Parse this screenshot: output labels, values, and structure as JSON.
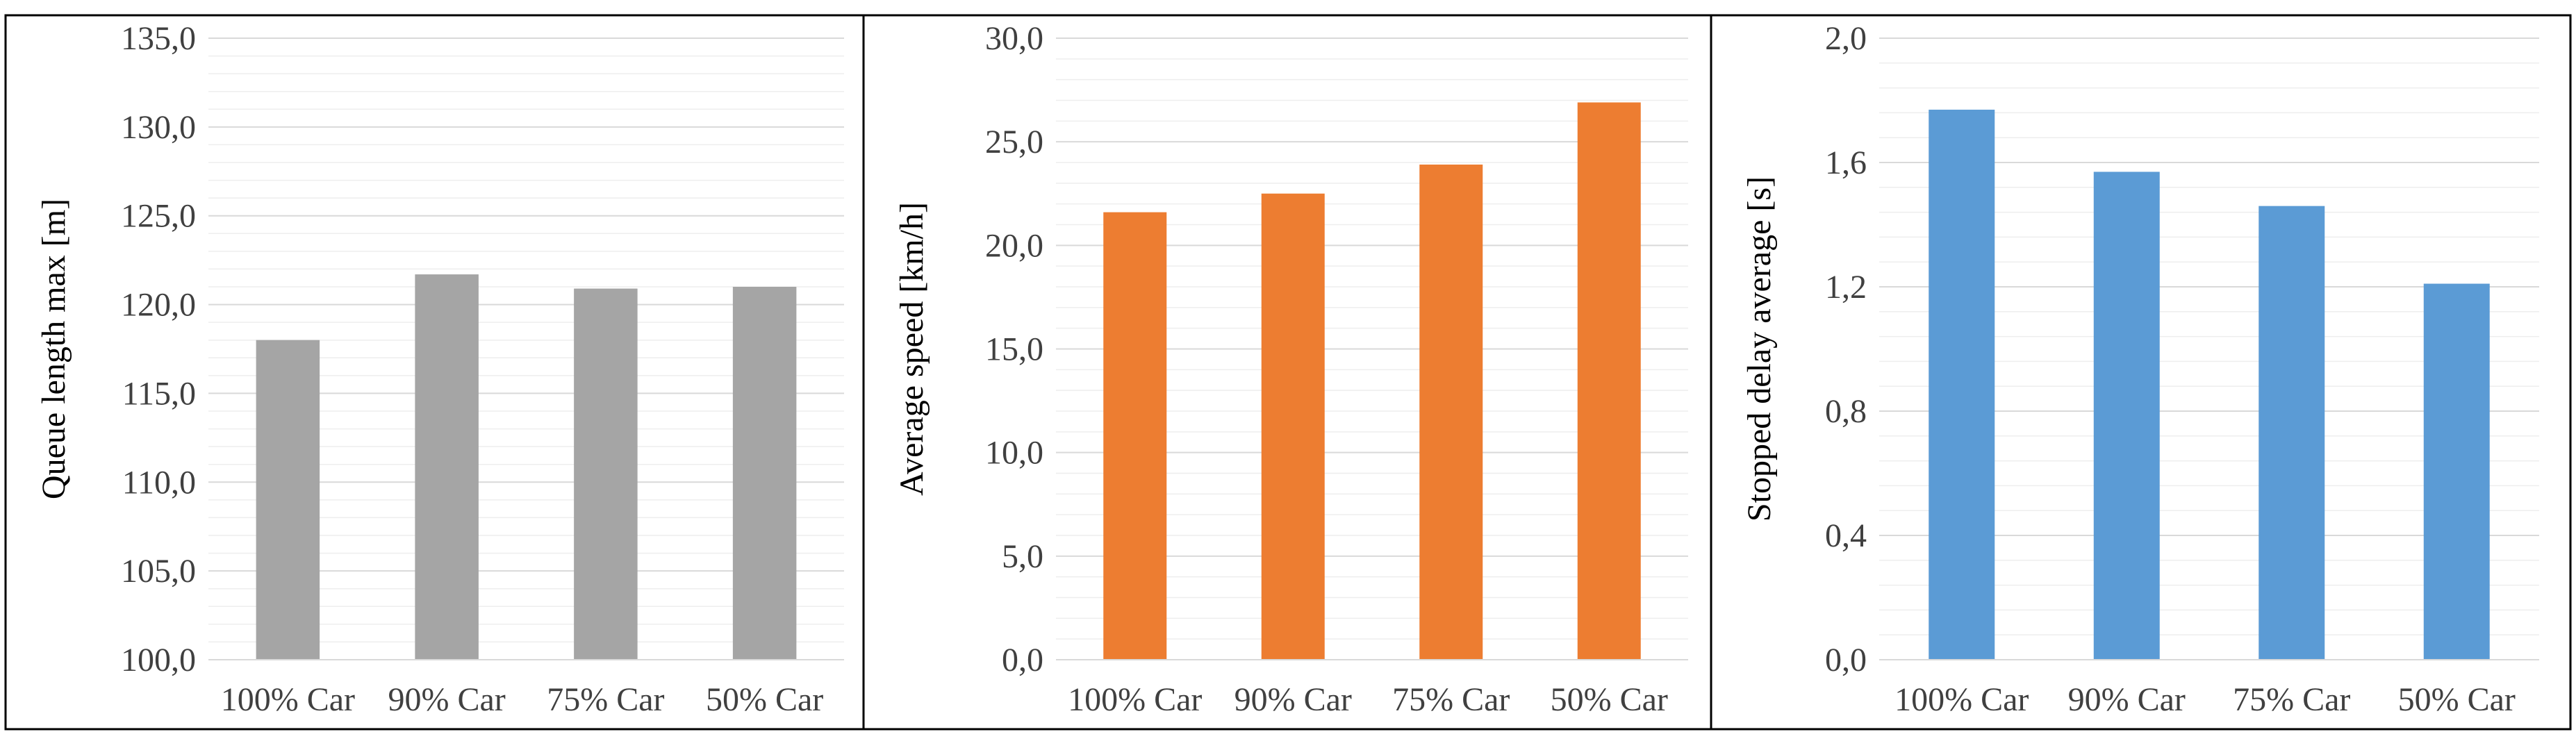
{
  "chart_data": [
    {
      "type": "bar",
      "categories": [
        "100% Car",
        "90% Car",
        "75% Car",
        "50% Car"
      ],
      "values": [
        118.0,
        121.7,
        120.9,
        121.0
      ],
      "title": "",
      "xlabel": "",
      "ylabel": "Queue length max [m]",
      "ylim": [
        100,
        135
      ],
      "yticks": [
        "100,0",
        "105,0",
        "110,0",
        "115,0",
        "120,0",
        "125,0",
        "130,0",
        "135,0"
      ],
      "grid": true,
      "legend": "none",
      "color": "#a5a5a5"
    },
    {
      "type": "bar",
      "categories": [
        "100% Car",
        "90% Car",
        "75% Car",
        "50% Car"
      ],
      "values": [
        21.6,
        22.5,
        23.9,
        26.9
      ],
      "title": "",
      "xlabel": "",
      "ylabel": "Average speed [km/h]",
      "ylim": [
        0,
        30
      ],
      "yticks": [
        "0,0",
        "5,0",
        "10,0",
        "15,0",
        "20,0",
        "25,0",
        "30,0"
      ],
      "grid": true,
      "legend": "none",
      "color": "#ed7d31"
    },
    {
      "type": "bar",
      "categories": [
        "100% Car",
        "90% Car",
        "75% Car",
        "50% Car"
      ],
      "values": [
        1.77,
        1.57,
        1.46,
        1.21
      ],
      "title": "",
      "xlabel": "",
      "ylabel": "Stopped delay average [s]",
      "ylim": [
        0,
        2
      ],
      "yticks": [
        "0,0",
        "0,4",
        "0,8",
        "1,2",
        "1,6",
        "2,0"
      ],
      "grid": true,
      "legend": "none",
      "color": "#5b9bd5"
    }
  ]
}
